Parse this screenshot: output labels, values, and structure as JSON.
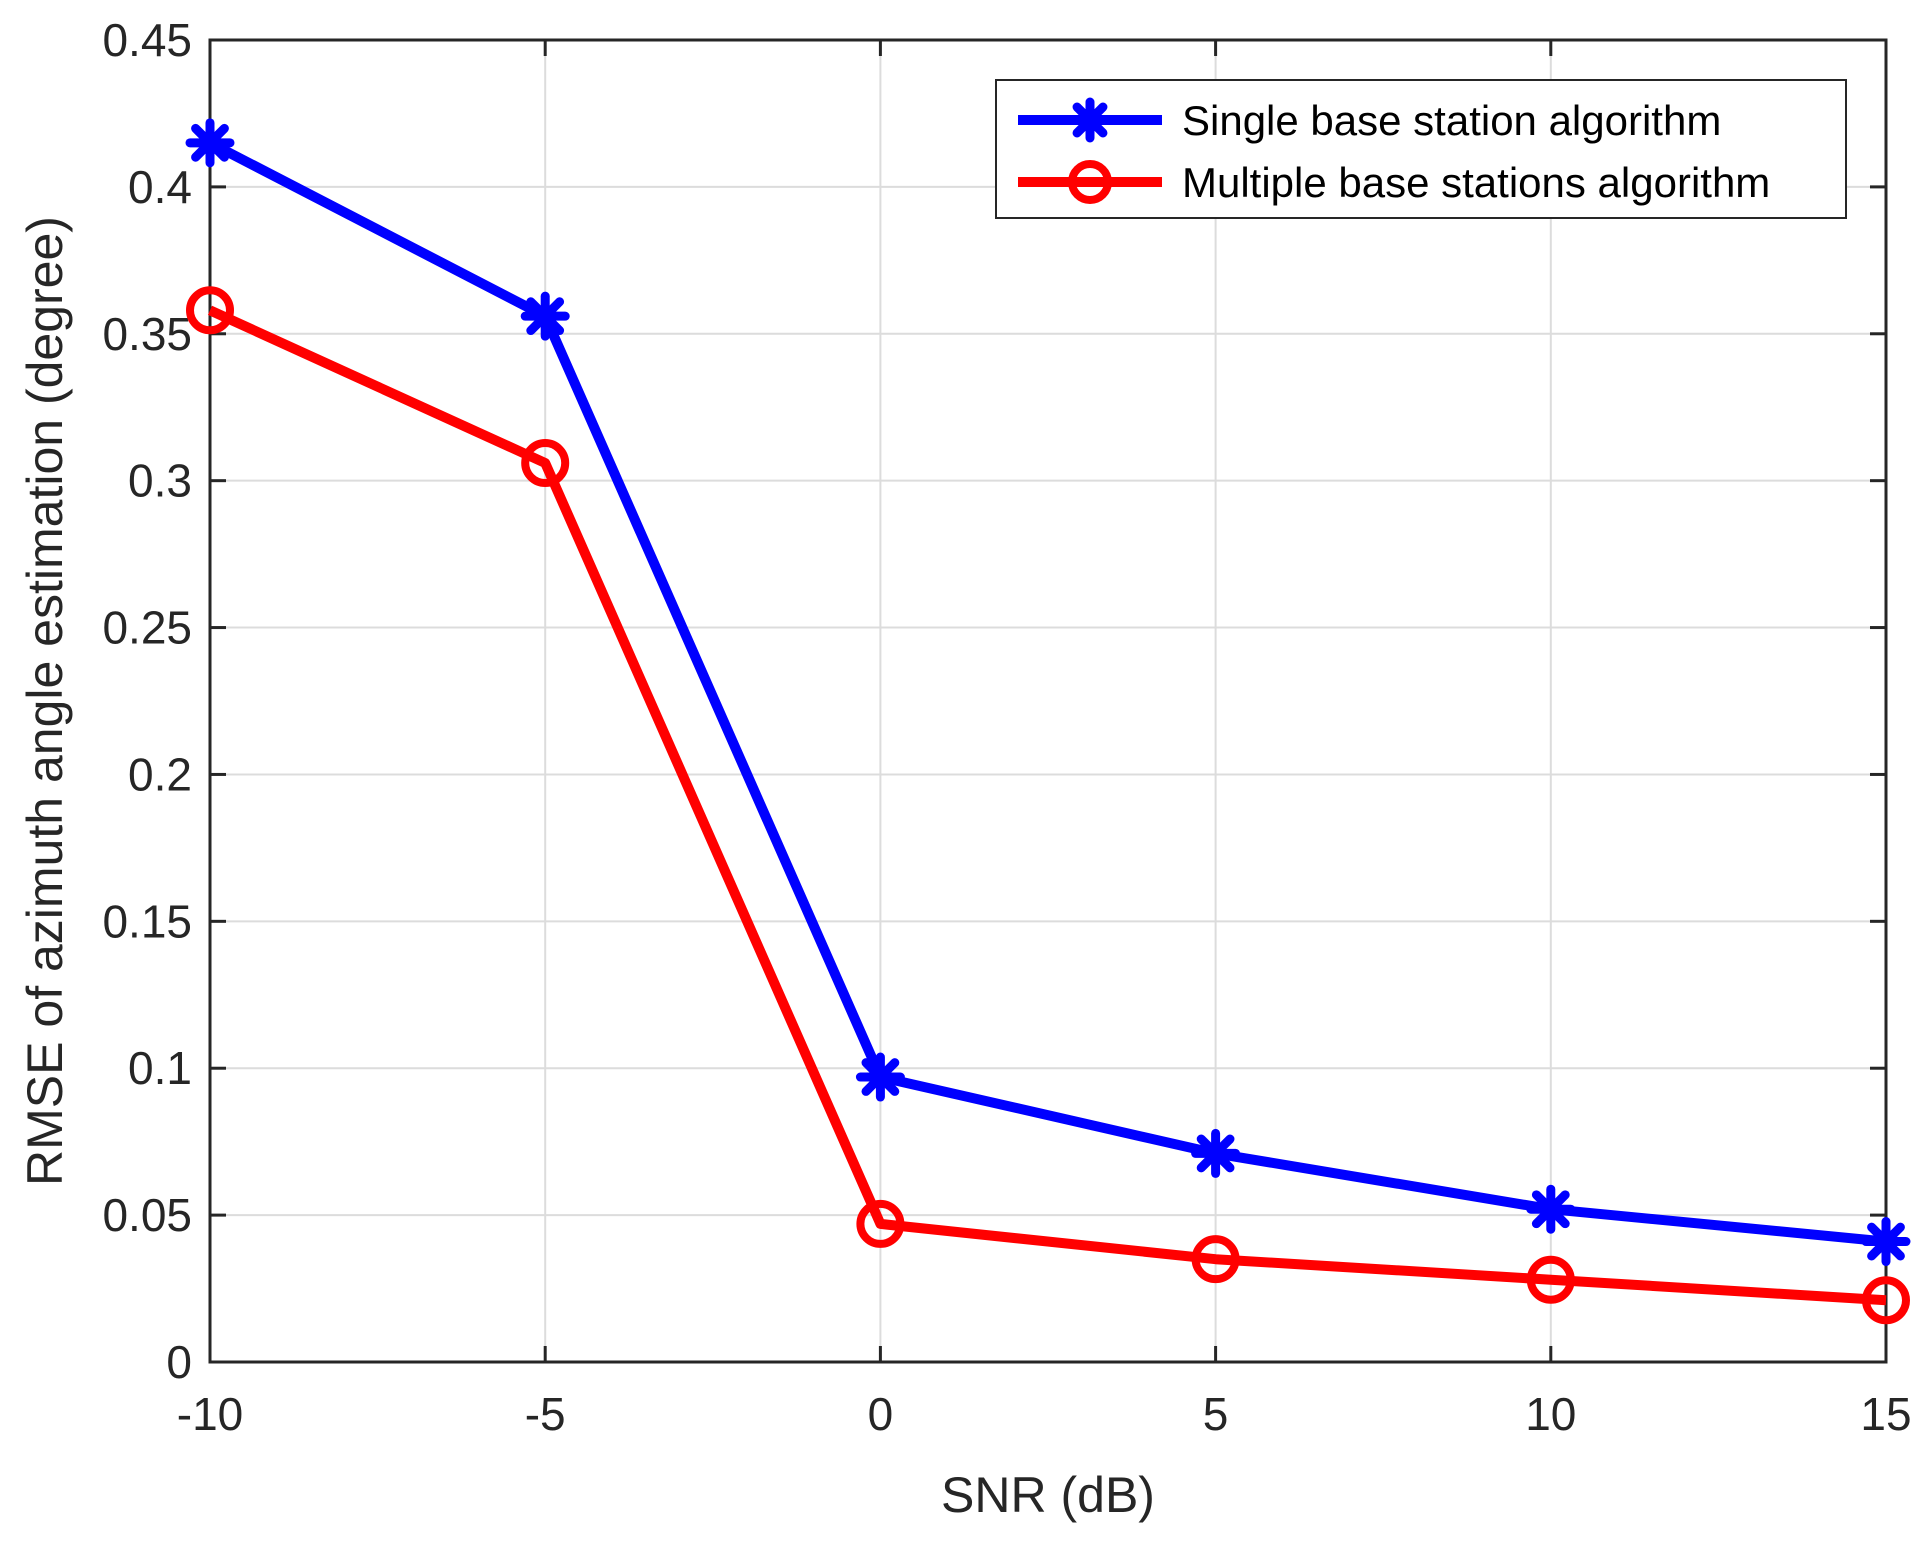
{
  "chart_data": {
    "type": "line",
    "title": "",
    "xlabel": "SNR (dB)",
    "ylabel": "RMSE of azimuth angle estimation (degree)",
    "x": [
      -10,
      -5,
      0,
      5,
      10,
      15
    ],
    "xlim": [
      -10,
      15
    ],
    "ylim": [
      0,
      0.45
    ],
    "xticks": [
      -10,
      -5,
      0,
      5,
      10,
      15
    ],
    "xtick_labels": [
      "-10",
      "-5",
      "0",
      "5",
      "10",
      "15"
    ],
    "yticks": [
      0,
      0.05,
      0.1,
      0.15,
      0.2,
      0.25,
      0.3,
      0.35,
      0.4,
      0.45
    ],
    "ytick_labels": [
      "0",
      "0.05",
      "0.1",
      "0.15",
      "0.2",
      "0.25",
      "0.3",
      "0.35",
      "0.4",
      "0.45"
    ],
    "grid": true,
    "legend_position": "top-right",
    "series": [
      {
        "name": "Single base station algorithm",
        "color": "#0000ff",
        "marker": "asterisk",
        "values": [
          0.415,
          0.356,
          0.097,
          0.071,
          0.052,
          0.041
        ]
      },
      {
        "name": "Multiple base stations algorithm",
        "color": "#ff0000",
        "marker": "circle",
        "values": [
          0.358,
          0.306,
          0.047,
          0.035,
          0.028,
          0.021
        ]
      }
    ]
  }
}
